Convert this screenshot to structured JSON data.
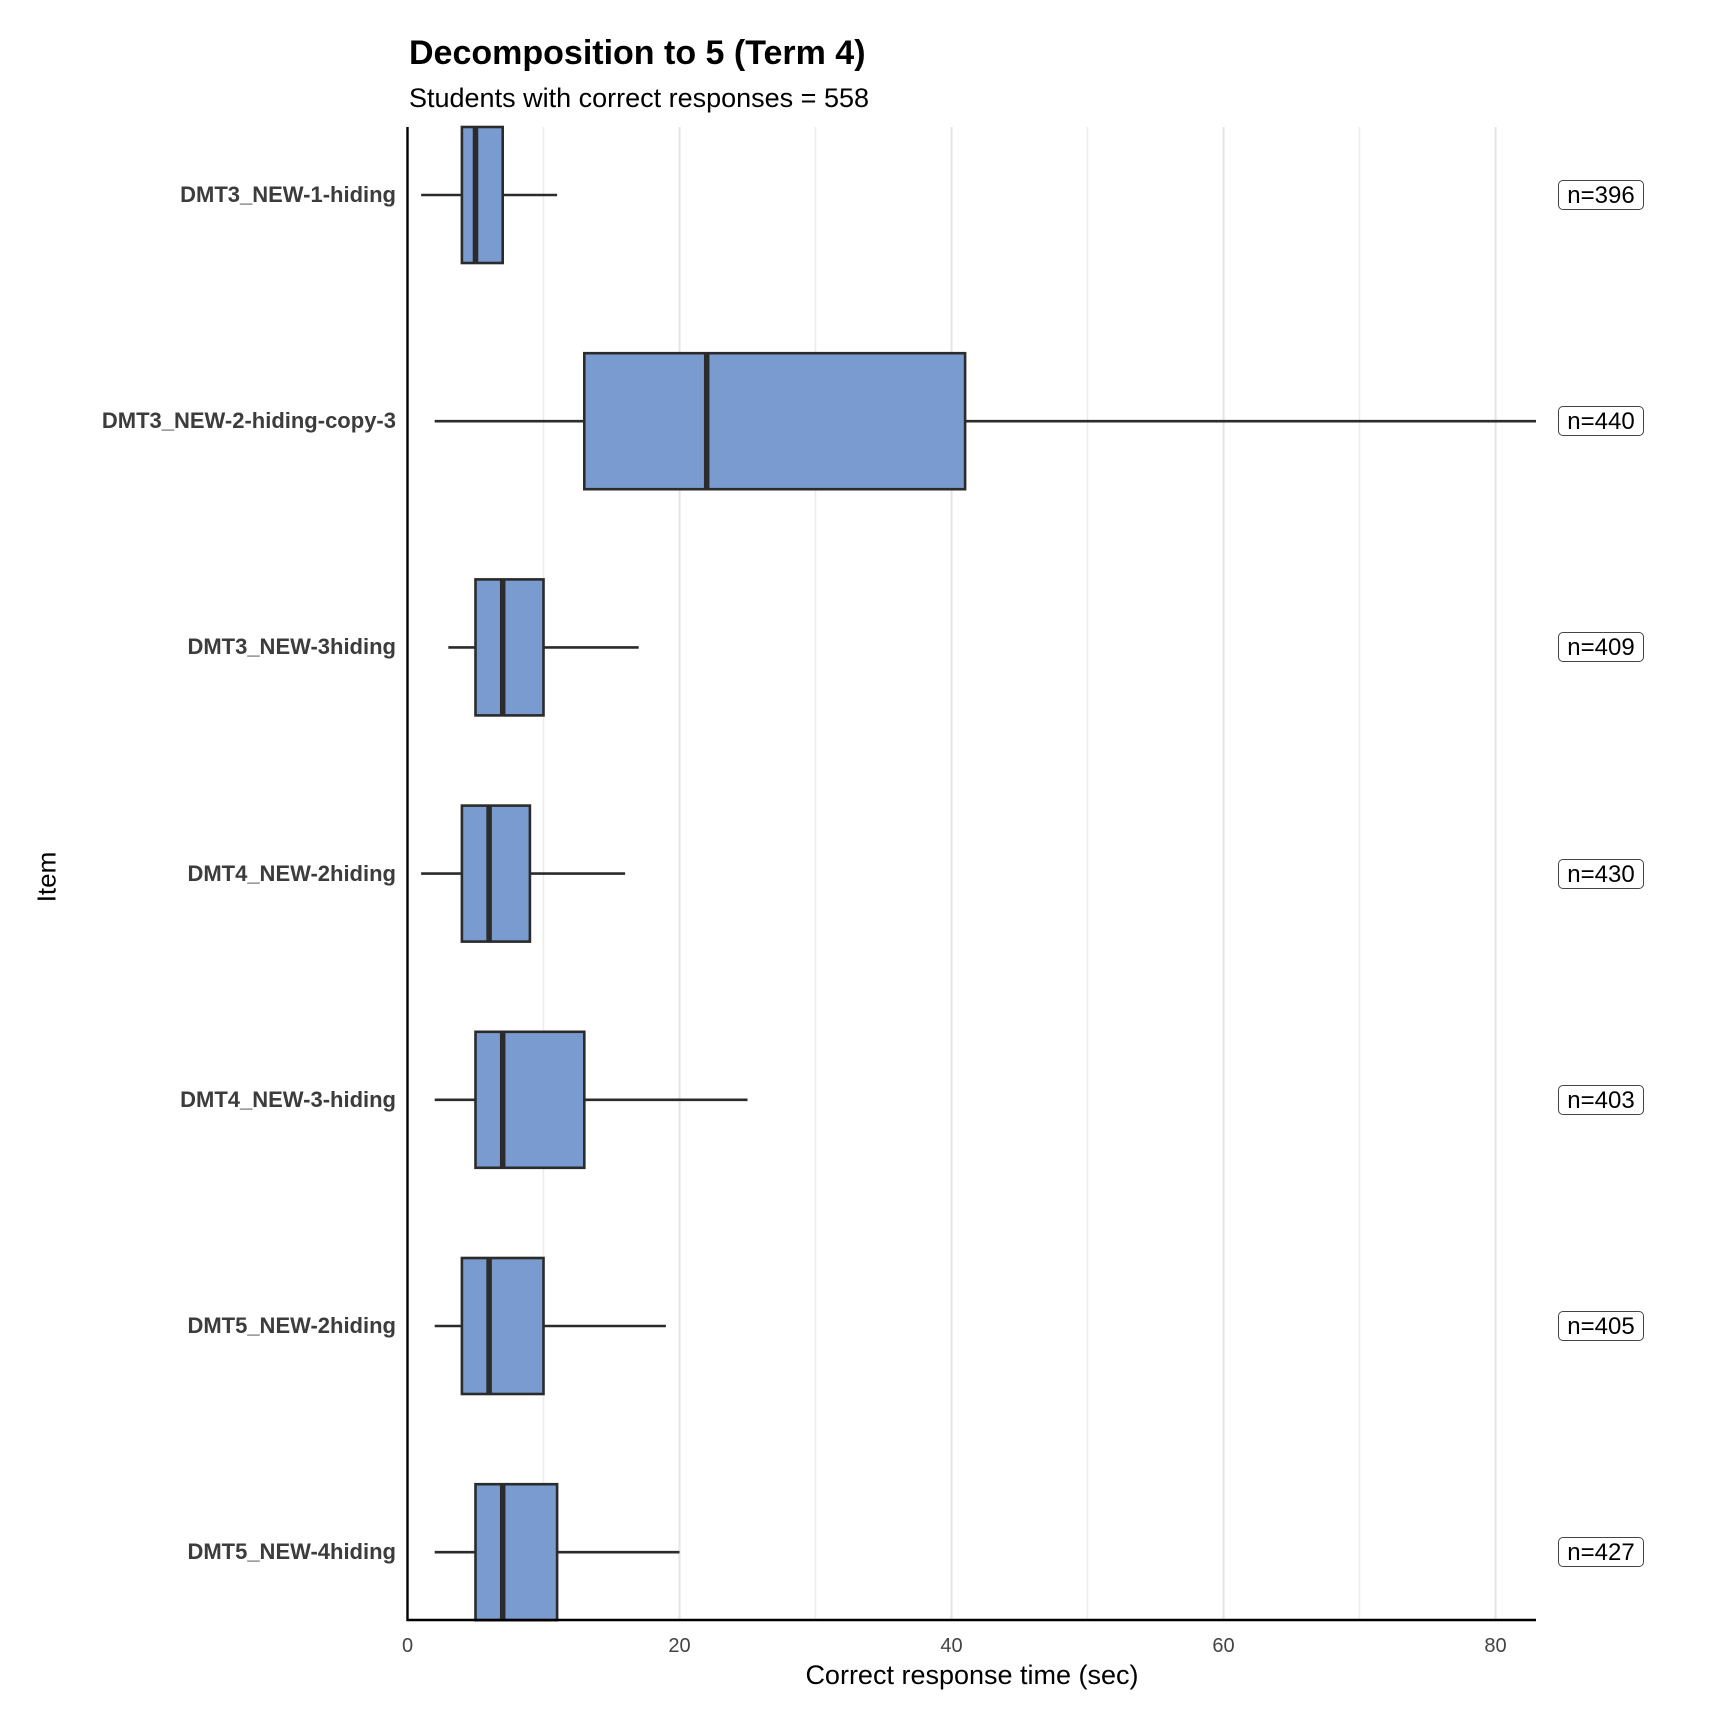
{
  "chart_data": {
    "type": "boxplot",
    "orientation": "horizontal",
    "title": "Decomposition to 5 (Term 4)",
    "subtitle": "Students with correct responses = 558",
    "xlabel": "Correct response time (sec)",
    "ylabel": "Item",
    "xlim": [
      0,
      83.9
    ],
    "xticks": [
      0,
      20,
      40,
      60,
      80
    ],
    "xtick_labels": [
      "0",
      "20",
      "40",
      "60",
      "80"
    ],
    "minor_gridlines": [
      10,
      30,
      50,
      70
    ],
    "grid": "vertical",
    "colors": {
      "box_fill": "#7a9bcf",
      "box_edge": "#2b2b2b",
      "grid": "#e6e6e6",
      "axis": "#000000"
    },
    "categories": [
      "DMT3_NEW-1-hiding",
      "DMT3_NEW-2-hiding-copy-3",
      "DMT3_NEW-3hiding",
      "DMT4_NEW-2hiding",
      "DMT4_NEW-3-hiding",
      "DMT5_NEW-2hiding",
      "DMT5_NEW-4hiding"
    ],
    "boxes": [
      {
        "min": 1,
        "q1": 4,
        "median": 5,
        "q3": 7,
        "max": 11,
        "n_label": "n=396"
      },
      {
        "min": 2,
        "q1": 13,
        "median": 22,
        "q3": 41,
        "max": 83,
        "n_label": "n=440"
      },
      {
        "min": 3,
        "q1": 5,
        "median": 7,
        "q3": 10,
        "max": 17,
        "n_label": "n=409"
      },
      {
        "min": 1,
        "q1": 4,
        "median": 6,
        "q3": 9,
        "max": 16,
        "n_label": "n=430"
      },
      {
        "min": 2,
        "q1": 5,
        "median": 7,
        "q3": 13,
        "max": 25,
        "n_label": "n=403"
      },
      {
        "min": 2,
        "q1": 4,
        "median": 6,
        "q3": 10,
        "max": 19,
        "n_label": "n=405"
      },
      {
        "min": 2,
        "q1": 5,
        "median": 7,
        "q3": 11,
        "max": 20,
        "n_label": "n=427"
      }
    ]
  }
}
